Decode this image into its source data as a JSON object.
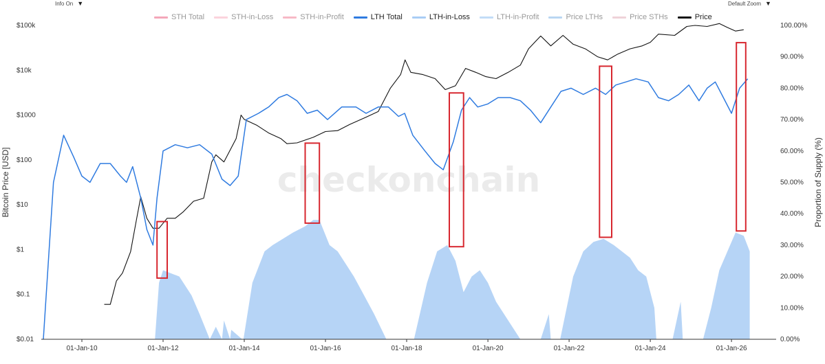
{
  "controls": {
    "info_label": "Info On",
    "zoom_label": "Default Zoom",
    "caret": "▼",
    "caret_icon": "chevron-down-icon"
  },
  "watermark": "checkonchain",
  "legend": [
    {
      "name": "STH Total",
      "color": "#f4a7b9"
    },
    {
      "name": "STH-in-Loss",
      "color": "#fbd3dc"
    },
    {
      "name": "STH-in-Profit",
      "color": "#f7b9c6"
    },
    {
      "name": "LTH Total",
      "color": "#2f7be0"
    },
    {
      "name": "LTH-in-Loss",
      "color": "#a9cdf5"
    },
    {
      "name": "LTH-in-Profit",
      "color": "#c2dcf7"
    },
    {
      "name": "Price LTHs",
      "color": "#b9d6f2"
    },
    {
      "name": "Price STHs",
      "color": "#efd2d9"
    },
    {
      "name": "Price",
      "color": "#111111"
    }
  ],
  "chart_data": {
    "type": "line",
    "title": "",
    "ylabel": "Bitcoin Price [USD]",
    "y2label": "Proportion of Supply (%)",
    "x_ticks": [
      "01-Jan-10",
      "01-Jan-12",
      "01-Jan-14",
      "01-Jan-16",
      "01-Jan-18",
      "01-Jan-20",
      "01-Jan-22",
      "01-Jan-24",
      "01-Jan-26"
    ],
    "x_range": [
      2009.0,
      2027.1
    ],
    "y_log": true,
    "y_range": [
      0.01,
      100000
    ],
    "y_ticks": [
      {
        "v": 0.01,
        "label": "$0.01"
      },
      {
        "v": 0.1,
        "label": "$0.1"
      },
      {
        "v": 1,
        "label": "$1"
      },
      {
        "v": 10,
        "label": "$10"
      },
      {
        "v": 100,
        "label": "$100"
      },
      {
        "v": 1000,
        "label": "$1000"
      },
      {
        "v": 10000,
        "label": "$10k"
      },
      {
        "v": 100000,
        "label": "$100k"
      }
    ],
    "y2_range": [
      0,
      100
    ],
    "y2_ticks": [
      "0.00%",
      "10.00%",
      "20.00%",
      "30.00%",
      "40.00%",
      "50.00%",
      "60.00%",
      "70.00%",
      "80.00%",
      "90.00%",
      "100.00%"
    ],
    "series": [
      {
        "name": "Price",
        "axis": "left",
        "color": "#111111",
        "x": [
          2010.55,
          2010.7,
          2010.85,
          2011.0,
          2011.2,
          2011.35,
          2011.45,
          2011.6,
          2011.75,
          2011.9,
          2012.1,
          2012.3,
          2012.5,
          2012.75,
          2013.0,
          2013.2,
          2013.3,
          2013.5,
          2013.8,
          2013.92,
          2014.0,
          2014.3,
          2014.6,
          2014.9,
          2015.05,
          2015.3,
          2015.7,
          2016.0,
          2016.3,
          2016.6,
          2017.0,
          2017.3,
          2017.6,
          2017.85,
          2017.96,
          2018.1,
          2018.4,
          2018.7,
          2018.95,
          2019.2,
          2019.45,
          2019.7,
          2019.95,
          2020.2,
          2020.5,
          2020.8,
          2021.0,
          2021.3,
          2021.55,
          2021.85,
          2022.1,
          2022.4,
          2022.7,
          2022.95,
          2023.2,
          2023.5,
          2023.8,
          2024.0,
          2024.2,
          2024.6,
          2024.9,
          2025.1,
          2025.4,
          2025.7,
          2025.9,
          2026.1,
          2026.3
        ],
        "values": [
          0.06,
          0.06,
          0.2,
          0.3,
          0.9,
          5,
          15,
          5,
          3,
          3,
          5,
          5,
          7,
          12,
          14,
          90,
          130,
          90,
          300,
          1000,
          800,
          600,
          400,
          300,
          230,
          240,
          320,
          430,
          450,
          620,
          900,
          1200,
          4000,
          8000,
          17000,
          9000,
          8000,
          6500,
          3700,
          4500,
          11000,
          9000,
          7200,
          6500,
          9000,
          13000,
          30000,
          58000,
          35000,
          60000,
          38000,
          30000,
          20000,
          17000,
          23000,
          30000,
          35000,
          42000,
          64000,
          60000,
          95000,
          100000,
          95000,
          110000,
          90000,
          75000,
          80000
        ]
      },
      {
        "name": "LTH Total",
        "axis": "right",
        "color": "#2f7be0",
        "x": [
          2009.05,
          2009.3,
          2009.55,
          2009.8,
          2010.0,
          2010.2,
          2010.45,
          2010.7,
          2010.95,
          2011.1,
          2011.25,
          2011.45,
          2011.6,
          2011.75,
          2011.85,
          2012.0,
          2012.3,
          2012.6,
          2012.9,
          2013.2,
          2013.45,
          2013.65,
          2013.85,
          2014.05,
          2014.35,
          2014.6,
          2014.85,
          2015.05,
          2015.3,
          2015.55,
          2015.8,
          2016.05,
          2016.4,
          2016.75,
          2017.0,
          2017.3,
          2017.55,
          2017.8,
          2017.95,
          2018.15,
          2018.45,
          2018.7,
          2018.9,
          2019.15,
          2019.35,
          2019.55,
          2019.75,
          2020.0,
          2020.25,
          2020.55,
          2020.8,
          2021.05,
          2021.3,
          2021.55,
          2021.8,
          2022.05,
          2022.35,
          2022.65,
          2022.9,
          2023.15,
          2023.4,
          2023.65,
          2023.95,
          2024.2,
          2024.45,
          2024.7,
          2024.95,
          2025.2,
          2025.4,
          2025.6,
          2025.8,
          2026.0,
          2026.2,
          2026.4
        ],
        "values": [
          0,
          50,
          65,
          58,
          52,
          50,
          56,
          56,
          52,
          50,
          55,
          45,
          35,
          30,
          45,
          60,
          62,
          61,
          62,
          59,
          51,
          49,
          52,
          70,
          72,
          74,
          77,
          78,
          76,
          72,
          73,
          70,
          74,
          74,
          72,
          74,
          74,
          71,
          72,
          65,
          60,
          56,
          54,
          63,
          73,
          77,
          74,
          75,
          77,
          77,
          76,
          73,
          69,
          74,
          79,
          80,
          78,
          80,
          78,
          81,
          82,
          83,
          82,
          77,
          76,
          78,
          81,
          76,
          80,
          82,
          77,
          72,
          80,
          83
        ]
      },
      {
        "name": "LTH-in-Loss",
        "axis": "right",
        "color": "#a9cdf5",
        "x": [
          2011.8,
          2011.9,
          2012.0,
          2012.4,
          2012.7,
          2012.9,
          2013.15,
          2013.3,
          2013.45,
          2013.5,
          2013.65,
          2013.68,
          2013.95,
          2013.98,
          2014.2,
          2014.5,
          2014.7,
          2014.95,
          2015.2,
          2015.5,
          2015.7,
          2015.85,
          2016.1,
          2016.3,
          2016.5,
          2016.7,
          2016.95,
          2017.2,
          2017.5,
          2017.53,
          2018.15,
          2018.18,
          2018.5,
          2018.75,
          2019.0,
          2019.2,
          2019.4,
          2019.6,
          2019.8,
          2020.0,
          2020.2,
          2020.5,
          2020.8,
          2020.83,
          2021.3,
          2021.5,
          2021.55,
          2021.75,
          2021.78,
          2022.1,
          2022.35,
          2022.6,
          2022.85,
          2023.1,
          2023.3,
          2023.5,
          2023.7,
          2023.9,
          2024.1,
          2024.15,
          2024.5,
          2024.55,
          2024.75,
          2024.8,
          2025.0,
          2025.05,
          2025.3,
          2025.5,
          2025.7,
          2025.9,
          2026.1,
          2026.3,
          2026.45
        ],
        "values": [
          0,
          18,
          22,
          20,
          14,
          8,
          0,
          4,
          0,
          6,
          0,
          3,
          0,
          0,
          18,
          28,
          30,
          32,
          34,
          36,
          38,
          38,
          30,
          28,
          24,
          20,
          14,
          8,
          0,
          0,
          0,
          0,
          18,
          28,
          30,
          25,
          15,
          20,
          22,
          18,
          12,
          6,
          0,
          0,
          0,
          8,
          0,
          0,
          0,
          20,
          28,
          31,
          32,
          30,
          28,
          26,
          22,
          20,
          10,
          0,
          0,
          0,
          12,
          0,
          0,
          0,
          0,
          10,
          22,
          28,
          34,
          33,
          28
        ]
      }
    ],
    "highlight_boxes": [
      {
        "x0": 2011.85,
        "x1": 2012.1,
        "y0_pct": 19.5,
        "y1_pct": 37.5
      },
      {
        "x0": 2015.5,
        "x1": 2015.85,
        "y0_pct": 37.0,
        "y1_pct": 62.5
      },
      {
        "x0": 2019.05,
        "x1": 2019.4,
        "y0_pct": 29.5,
        "y1_pct": 78.5
      },
      {
        "x0": 2022.75,
        "x1": 2023.05,
        "y0_pct": 32.5,
        "y1_pct": 87.0
      },
      {
        "x0": 2026.12,
        "x1": 2026.35,
        "y0_pct": 34.5,
        "y1_pct": 94.5
      }
    ],
    "grid": false,
    "legend_position": "top"
  }
}
